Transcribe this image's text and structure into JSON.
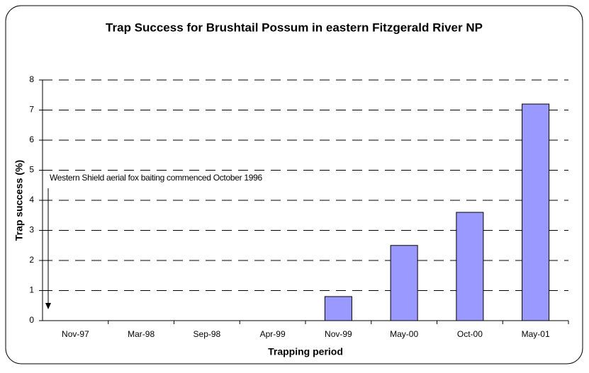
{
  "chart_data": {
    "type": "bar",
    "title": "Trap Success for Brushtail Possum in eastern Fitzgerald River NP",
    "x_label": "Trapping period",
    "y_label": "Trap success (%)",
    "annotation": "Western Shield aerial fox baiting commenced October 1996",
    "categories": [
      "Nov-97",
      "Mar-98",
      "Sep-98",
      "Apr-99",
      "Nov-99",
      "May-00",
      "Oct-00",
      "May-01"
    ],
    "values": [
      0,
      0,
      0,
      0,
      0.8,
      2.5,
      3.6,
      7.2
    ],
    "color": "#9999ff",
    "ylim": [
      0,
      8
    ],
    "yticks": [
      0,
      1,
      2,
      3,
      4,
      5,
      6,
      7,
      8
    ],
    "grid": true
  }
}
